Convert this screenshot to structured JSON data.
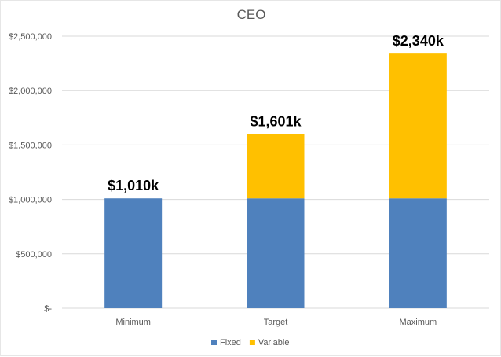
{
  "chart_data": {
    "type": "bar",
    "stacked": true,
    "title": "CEO",
    "categories": [
      "Minimum",
      "Target",
      "Maximum"
    ],
    "series": [
      {
        "name": "Fixed",
        "values": [
          1010000,
          1010000,
          1010000
        ],
        "color": "#4f81bd"
      },
      {
        "name": "Variable",
        "values": [
          0,
          591000,
          1330000
        ],
        "color": "#ffc000"
      }
    ],
    "total_labels": [
      "$1,010k",
      "$1,601k",
      "$2,340k"
    ],
    "ylim": [
      0,
      2500000
    ],
    "y_ticks": [
      0,
      500000,
      1000000,
      1500000,
      2000000,
      2500000
    ],
    "y_tick_labels": [
      "$-",
      "$500,000",
      "$1,000,000",
      "$1,500,000",
      "$2,000,000",
      "$2,500,000"
    ],
    "xlabel": "",
    "ylabel": "",
    "grid": true,
    "legend_position": "bottom"
  }
}
